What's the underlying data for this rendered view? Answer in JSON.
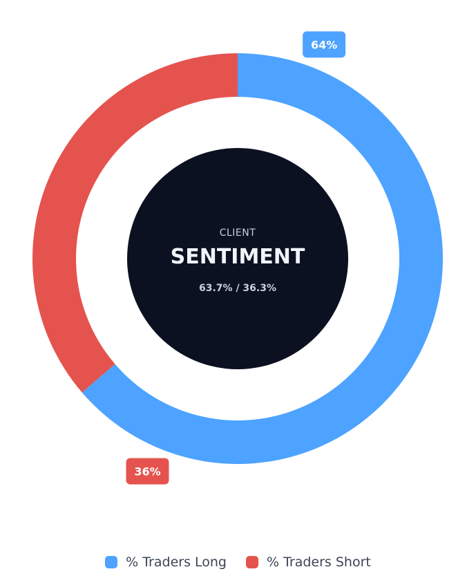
{
  "chart_data": {
    "type": "pie",
    "variant": "donut",
    "categories": [
      "% Traders Long",
      "% Traders Short"
    ],
    "values": [
      63.7,
      36.3
    ],
    "colors": [
      "#4da3ff",
      "#e5534e"
    ],
    "slice_labels": [
      "64%",
      "36%"
    ],
    "center": {
      "caption": "CLIENT",
      "title": "SENTIMENT",
      "subtitle": "63.7% / 36.3%",
      "color": "#0b1120"
    },
    "legend_position": "bottom"
  }
}
